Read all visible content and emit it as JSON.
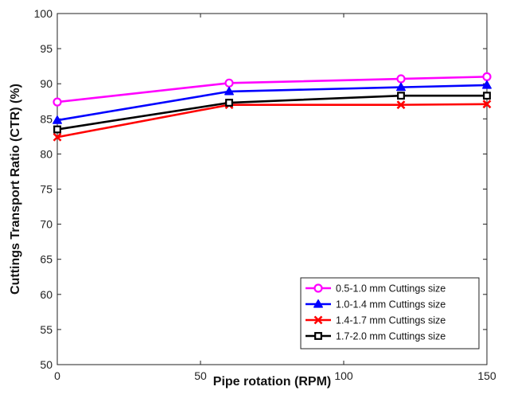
{
  "chart_data": {
    "type": "line",
    "title": "",
    "xlabel": "Pipe rotation (RPM)",
    "ylabel": "Cuttings Transport Ratio (CTR) (%)",
    "xlim": [
      0,
      150
    ],
    "ylim": [
      50,
      100
    ],
    "x_ticks": [
      "0",
      "50",
      "100",
      "150"
    ],
    "y_ticks": [
      "50",
      "55",
      "60",
      "65",
      "70",
      "75",
      "80",
      "85",
      "90",
      "95",
      "100"
    ],
    "grid": false,
    "legend_position": "bottom-right",
    "x": [
      0,
      60,
      120,
      150
    ],
    "series": [
      {
        "name": "0.5-1.0 mm Cuttings size",
        "values": [
          87.4,
          90.1,
          90.7,
          91.0
        ],
        "color": "#ff00ff",
        "marker": "circle"
      },
      {
        "name": "1.0-1.4 mm Cuttings size",
        "values": [
          84.8,
          88.9,
          89.5,
          89.8
        ],
        "color": "#0000ff",
        "marker": "triangle"
      },
      {
        "name": "1.4-1.7 mm Cuttings size",
        "values": [
          82.4,
          87.0,
          87.0,
          87.1
        ],
        "color": "#ff0000",
        "marker": "x"
      },
      {
        "name": "1.7-2.0 mm Cuttings size",
        "values": [
          83.5,
          87.3,
          88.3,
          88.3
        ],
        "color": "#000000",
        "marker": "square"
      }
    ]
  }
}
